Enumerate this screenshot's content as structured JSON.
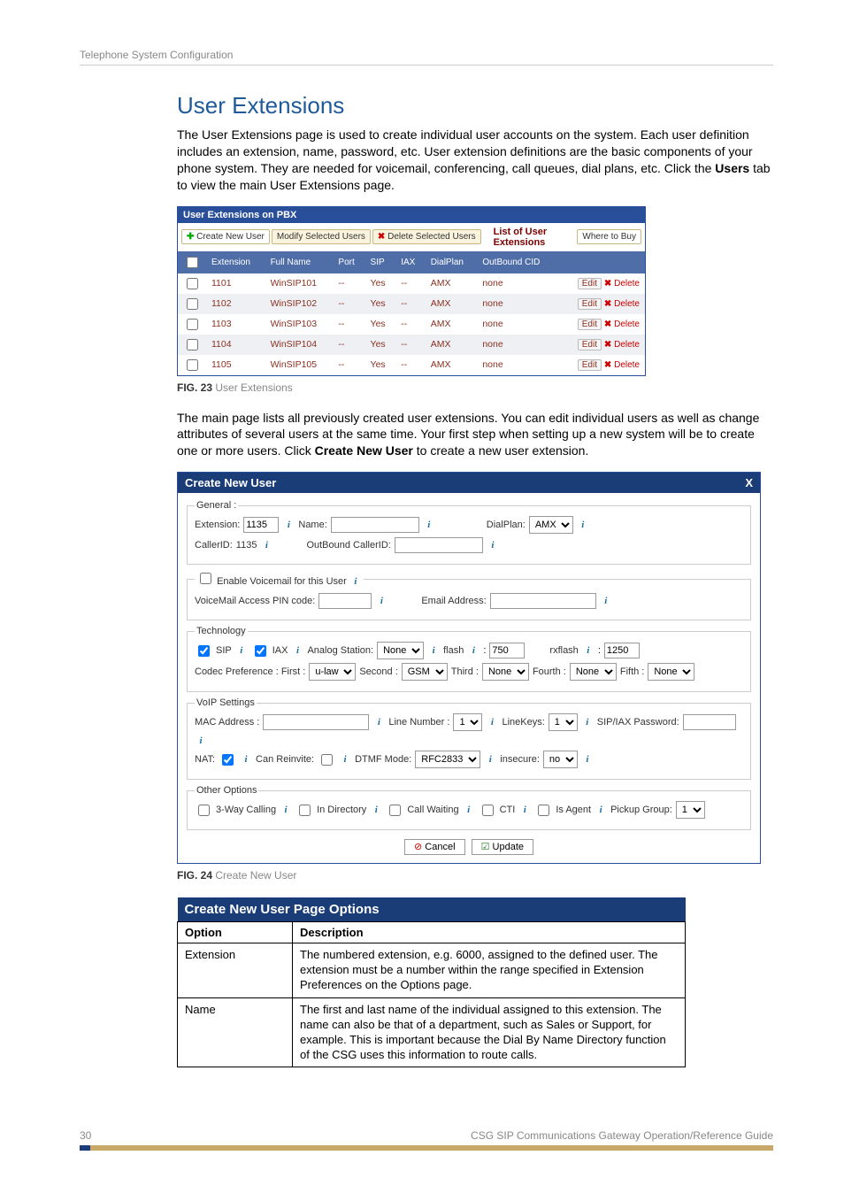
{
  "header_breadcrumb": "Telephone System Configuration",
  "section_title": "User Extensions",
  "intro_para": "The User Extensions page is used to create individual user accounts on the system. Each user definition includes an extension, name, password, etc. User extension definitions are the basic components of your phone system. They are needed for voicemail, conferencing, call queues, dial plans, etc. Click the ",
  "intro_bold": "Users",
  "intro_tail": " tab to view the main User Extensions page.",
  "panel1": {
    "title": "User Extensions on PBX",
    "btn_create": "Create New User",
    "btn_modify": "Modify Selected Users",
    "btn_delete_sel": "Delete Selected Users",
    "list_label": "List of User Extensions",
    "btn_where": "Where to Buy",
    "cols": [
      "Extension",
      "Full Name",
      "Port",
      "SIP",
      "IAX",
      "DialPlan",
      "OutBound CID"
    ],
    "rows": [
      {
        "ext": "1101",
        "name": "WinSIP101",
        "port": "--",
        "sip": "Yes",
        "iax": "--",
        "dp": "AMX",
        "cid": "none"
      },
      {
        "ext": "1102",
        "name": "WinSIP102",
        "port": "--",
        "sip": "Yes",
        "iax": "--",
        "dp": "AMX",
        "cid": "none"
      },
      {
        "ext": "1103",
        "name": "WinSIP103",
        "port": "--",
        "sip": "Yes",
        "iax": "--",
        "dp": "AMX",
        "cid": "none"
      },
      {
        "ext": "1104",
        "name": "WinSIP104",
        "port": "--",
        "sip": "Yes",
        "iax": "--",
        "dp": "AMX",
        "cid": "none"
      },
      {
        "ext": "1105",
        "name": "WinSIP105",
        "port": "--",
        "sip": "Yes",
        "iax": "--",
        "dp": "AMX",
        "cid": "none"
      }
    ],
    "edit_label": "Edit",
    "delete_label": "Delete"
  },
  "fig23_b": "FIG. 23",
  "fig23_t": "  User Extensions",
  "mid_para_a": "The main page lists all previously created user extensions. You can edit individual users as well as change attributes of several users at the same time. Your first step when setting up a new system will be to create one or more users. Click ",
  "mid_bold": "Create New User",
  "mid_para_b": " to create a new user extension.",
  "dialog": {
    "title": "Create New User",
    "close": "X",
    "general_legend": "General :",
    "ext_label": "Extension:",
    "ext_value": "1135",
    "name_label": "Name:",
    "dialplan_label": "DialPlan:",
    "dialplan_value": "AMX",
    "callerid_label": "CallerID:",
    "callerid_value": "1135",
    "outcid_label": "OutBound CallerID:",
    "vm_legend_label": "Enable Voicemail for this User",
    "vm_pin_label": "VoiceMail Access PIN code:",
    "email_label": "Email Address:",
    "tech_legend": "Technology",
    "sip_label": "SIP",
    "iax_label": "IAX",
    "analog_label": "Analog Station:",
    "analog_value": "None",
    "flash_label": "flash",
    "flash_value": "750",
    "rxflash_label": "rxflash",
    "rxflash_value": "1250",
    "codec_label": "Codec Preference : First :",
    "codec1": "u-law",
    "codec_second": "Second :",
    "codec2": "GSM",
    "codec_third": "Third :",
    "codec3": "None",
    "codec_fourth": "Fourth :",
    "codec4": "None",
    "codec_fifth": "Fifth :",
    "codec5": "None",
    "voip_legend": "VoIP Settings",
    "mac_label": "MAC Address :",
    "linenum_label": "Line Number :",
    "linenum_value": "1",
    "linekeys_label": "LineKeys:",
    "linekeys_value": "1",
    "sipiax_label": "SIP/IAX Password:",
    "nat_label": "NAT:",
    "reinvite_label": "Can Reinvite:",
    "dtmf_label": "DTMF Mode:",
    "dtmf_value": "RFC2833",
    "insecure_label": "insecure:",
    "insecure_value": "no",
    "other_legend": "Other Options",
    "threeway_label": "3-Way Calling",
    "indir_label": "In Directory",
    "callwait_label": "Call Waiting",
    "cti_label": "CTI",
    "isagent_label": "Is Agent",
    "pickup_label": "Pickup Group:",
    "pickup_value": "1",
    "cancel": "Cancel",
    "update": "Update"
  },
  "fig24_b": "FIG. 24",
  "fig24_t": "  Create New User",
  "opts": {
    "title": "Create New User Page Options",
    "col_option": "Option",
    "col_desc": "Description",
    "rows": [
      {
        "opt": "Extension",
        "desc": "The numbered extension, e.g. 6000, assigned to the defined user. The extension must be a number within the range specified in Extension Preferences on the Options page."
      },
      {
        "opt": "Name",
        "desc": "The first and last name of the individual assigned to this extension. The name can also be that of a department, such as Sales or Support, for example. This is important because the Dial By Name Directory function of the CSG uses this information to route calls."
      }
    ]
  },
  "footer_page": "30",
  "footer_doc": "CSG SIP Communications Gateway Operation/Reference Guide",
  "colors": {
    "heading": "#1f5a9a",
    "panel_header": "#2a4f9a",
    "table_header": "#4f6ea8",
    "dialog_header": "#1a3c77",
    "row_text": "#8a3020"
  }
}
